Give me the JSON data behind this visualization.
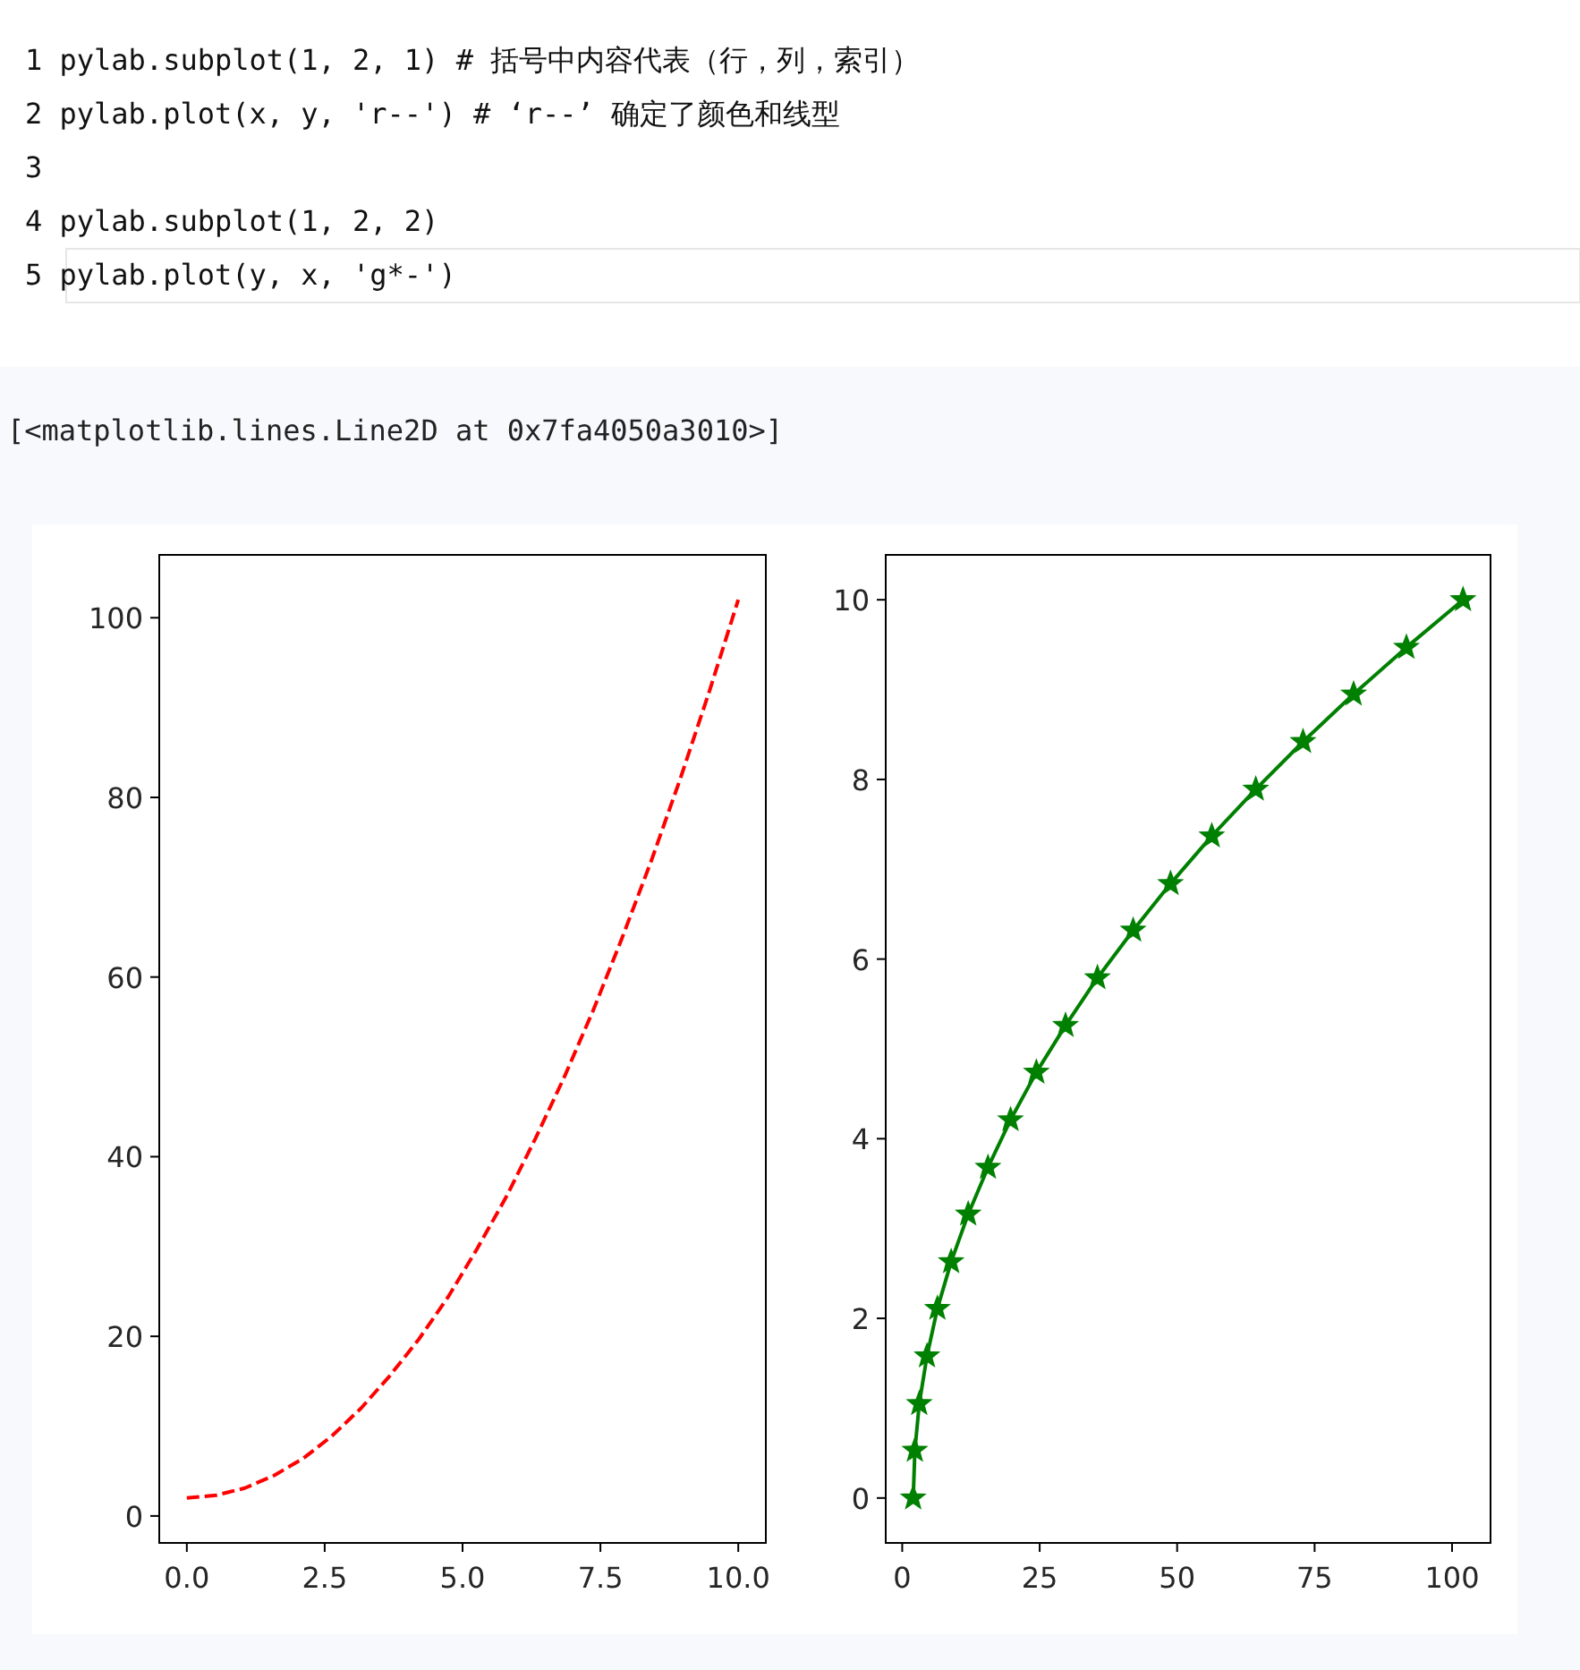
{
  "chart_data": [
    {
      "type": "line",
      "annotations": [
        "1 pylab.subplot(1, 2, 1)  # 括号中内容代表（行，列，索引）",
        "2 pylab.plot(x, y, 'r--')  # ‘r--’ 确定了颜色和线型",
        "3",
        "4 pylab.subplot(1, 2, 2)",
        "5 pylab.plot(y, x, 'g*-')"
      ],
      "x": [
        0,
        0.53,
        1.05,
        1.58,
        2.11,
        2.63,
        3.16,
        3.68,
        4.21,
        4.74,
        5.26,
        5.79,
        6.32,
        6.84,
        7.37,
        7.89,
        8.42,
        8.95,
        9.47,
        10
      ],
      "series": [
        {
          "color": "#ff0000",
          "values": [
            2,
            2.3,
            3.1,
            4.5,
            6.4,
            8.9,
            12,
            15.6,
            19.7,
            24.4,
            29.7,
            35.5,
            42,
            48.8,
            56.3,
            64.3,
            72.9,
            82.1,
            91.7,
            102
          ]
        }
      ],
      "line_style": "dashed",
      "marker": "none",
      "grid": false,
      "xlim": [
        -0.5,
        10.5
      ],
      "ylim": [
        -3,
        107
      ],
      "xticks": [
        {
          "value": 0,
          "label": "0.0"
        },
        {
          "value": 2.5,
          "label": "2.5"
        },
        {
          "value": 5,
          "label": "5.0"
        },
        {
          "value": 7.5,
          "label": "7.5"
        },
        {
          "value": 10,
          "label": "10.0"
        }
      ],
      "yticks": [
        0,
        20,
        40,
        60,
        80,
        100
      ]
    },
    {
      "type": "line",
      "annotations": [
        "[<matplotlib.lines.Line2D at 0x7fa4050a3010>]"
      ],
      "x": [
        2,
        2.3,
        3.1,
        4.5,
        6.4,
        8.9,
        12,
        15.6,
        19.7,
        24.4,
        29.7,
        35.5,
        42,
        48.8,
        56.3,
        64.3,
        72.9,
        82.1,
        91.7,
        102
      ],
      "series": [
        {
          "color": "#008000",
          "values": [
            0,
            0.53,
            1.05,
            1.58,
            2.11,
            2.63,
            3.16,
            3.68,
            4.21,
            4.74,
            5.26,
            5.79,
            6.32,
            6.84,
            7.37,
            7.89,
            8.42,
            8.95,
            9.47,
            10
          ]
        }
      ],
      "line_style": "solid",
      "marker": "star",
      "grid": false,
      "xlim": [
        -3,
        107
      ],
      "ylim": [
        -0.5,
        10.5
      ],
      "xticks": [
        0,
        25,
        50,
        75,
        100
      ],
      "yticks": [
        0,
        2,
        4,
        6,
        8,
        10
      ]
    }
  ]
}
